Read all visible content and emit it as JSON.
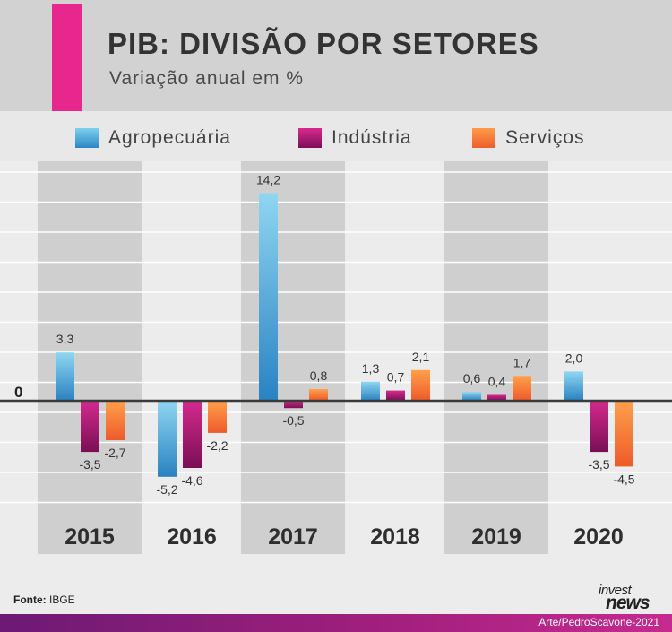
{
  "title": "PIB: DIVISÃO POR SETORES",
  "subtitle": "Variação anual em %",
  "source_label": "Fonte:",
  "source_value": "IBGE",
  "credit": "Arte/PedroScavone-2021",
  "logo": {
    "top": "invest",
    "bottom": "news"
  },
  "colors": {
    "accent": "#e8278e",
    "agro": "#3aa7d8",
    "industria": "#a3166f",
    "servicos": "#f47a36",
    "band": "#cfcfcf"
  },
  "chart_data": {
    "type": "bar",
    "title": "PIB: DIVISÃO POR SETORES",
    "subtitle": "Variação anual em %",
    "categories": [
      "2015",
      "2016",
      "2017",
      "2018",
      "2019",
      "2020"
    ],
    "series": [
      {
        "name": "Agropecuária",
        "values": [
          3.3,
          -5.2,
          14.2,
          1.3,
          0.6,
          2.0
        ],
        "labels": [
          "3,3",
          "-5,2",
          "14,2",
          "1,3",
          "0,6",
          "2,0"
        ]
      },
      {
        "name": "Indústria",
        "values": [
          -3.5,
          -4.6,
          -0.5,
          0.7,
          0.4,
          -3.5
        ],
        "labels": [
          "-3,5",
          "-4,6",
          "-0,5",
          "0,7",
          "0,4",
          "-3,5"
        ]
      },
      {
        "name": "Serviços",
        "values": [
          -2.7,
          -2.2,
          0.8,
          2.1,
          1.7,
          -4.5
        ],
        "labels": [
          "-2,7",
          "-2,2",
          "0,8",
          "2,1",
          "1,7",
          "-4,5"
        ]
      }
    ],
    "zero_label": "0",
    "ylim": [
      -8,
      16
    ],
    "grid": true,
    "legend_position": "top"
  }
}
